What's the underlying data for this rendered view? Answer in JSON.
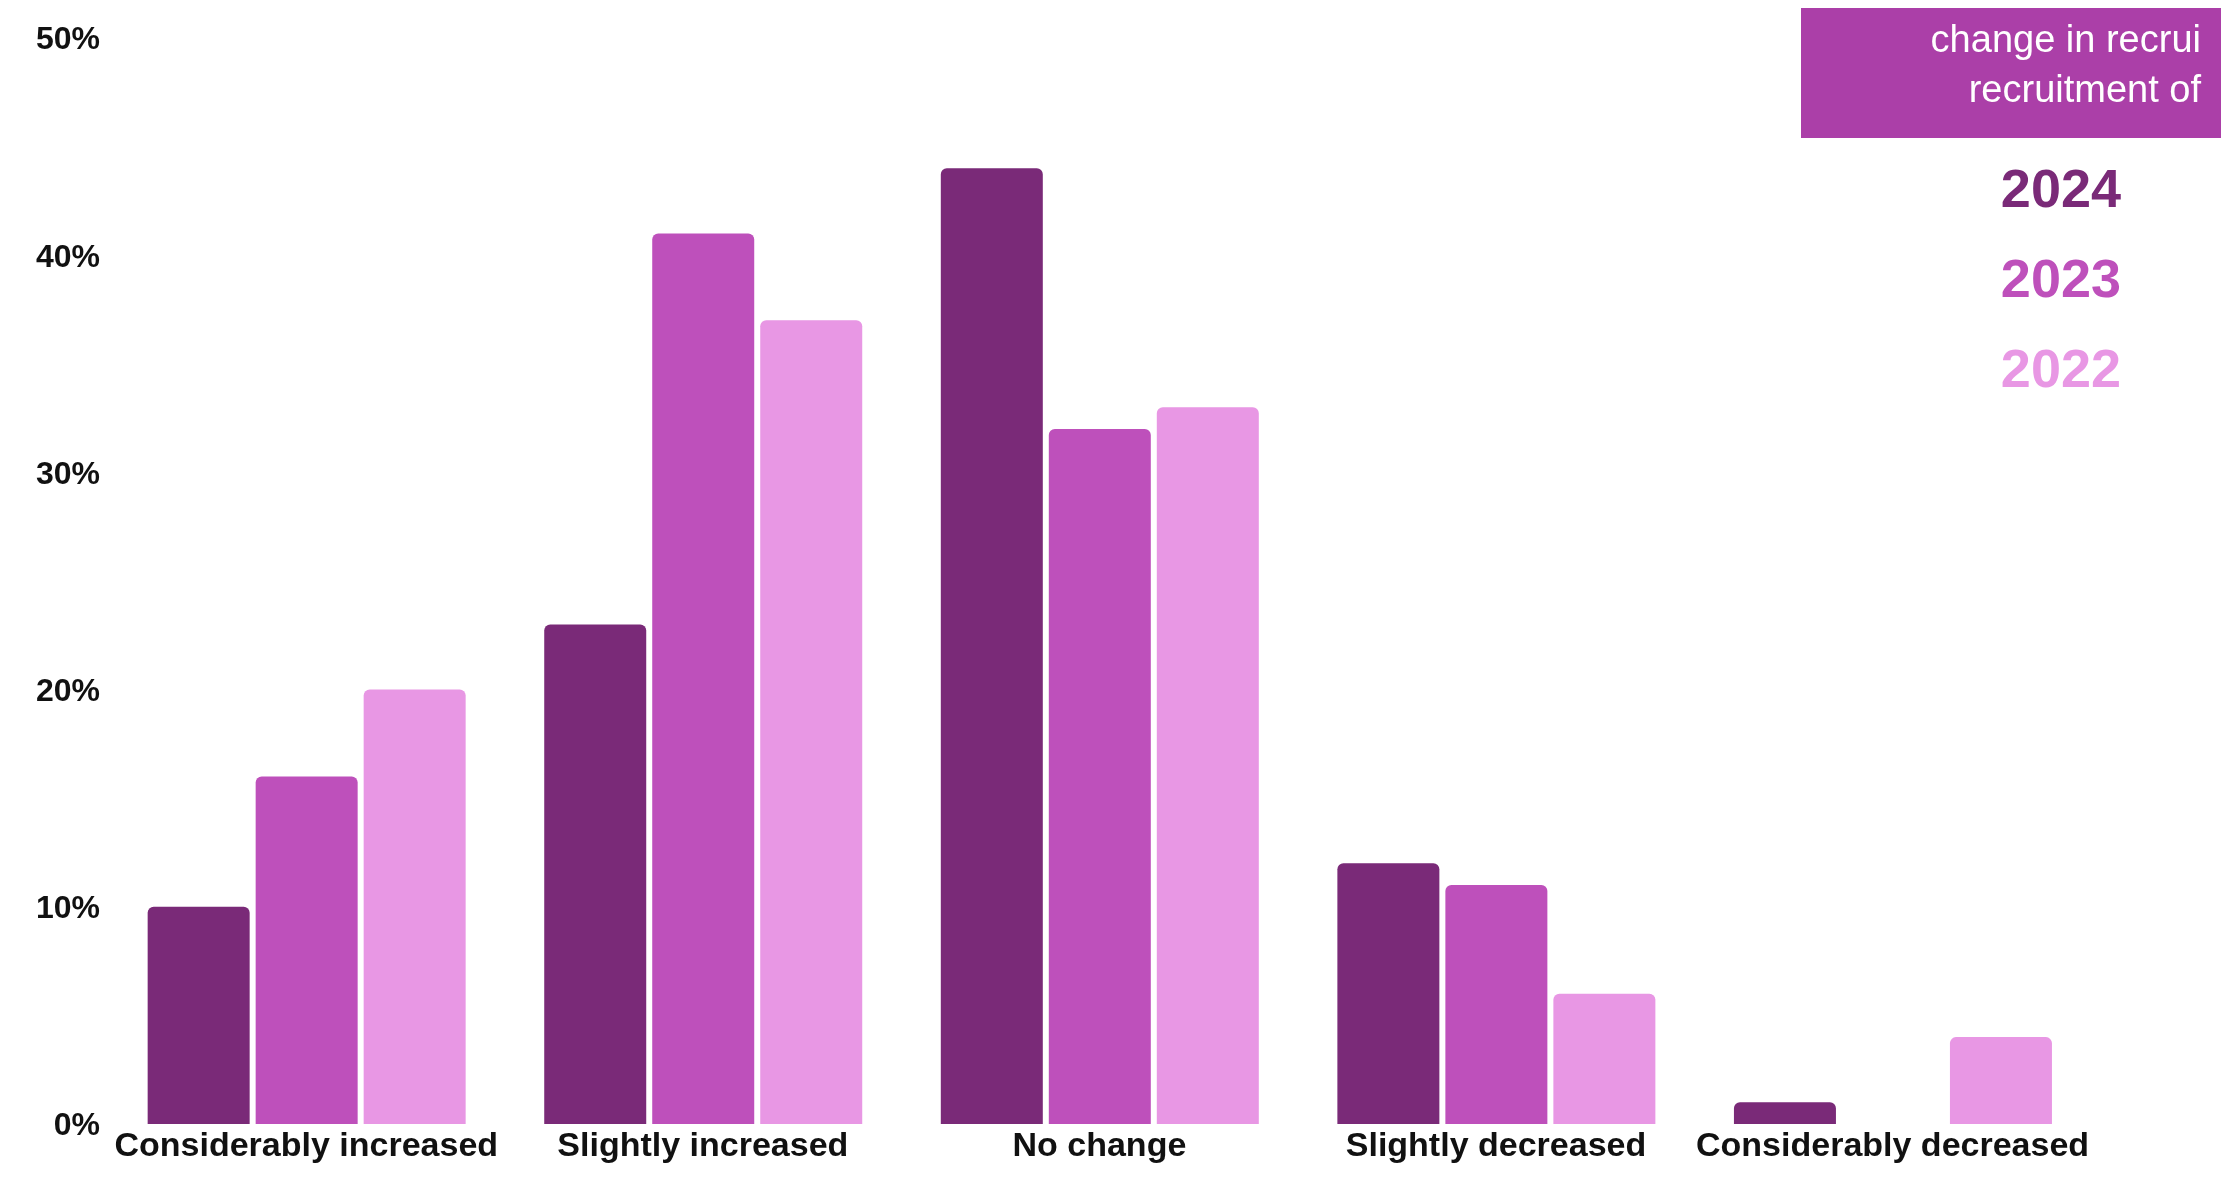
{
  "chart_data": {
    "type": "bar",
    "title": "change in recrui\nrecruitment of",
    "categories": [
      "Considerably increased",
      "Slightly increased",
      "No change",
      "Slightly decreased",
      "Considerably decreased"
    ],
    "series": [
      {
        "name": "2024",
        "color": "#7a2a78",
        "values": [
          10,
          23,
          44,
          12,
          1
        ]
      },
      {
        "name": "2023",
        "color": "#be50bb",
        "values": [
          16,
          41,
          32,
          11,
          0
        ]
      },
      {
        "name": "2022",
        "color": "#e897e4",
        "values": [
          20,
          37,
          33,
          6,
          4
        ]
      }
    ],
    "ylim": [
      0,
      50
    ],
    "yticks": [
      {
        "value": 0,
        "label": "0%"
      },
      {
        "value": 10,
        "label": "10%"
      },
      {
        "value": 20,
        "label": "20%"
      },
      {
        "value": 30,
        "label": "30%"
      },
      {
        "value": 40,
        "label": "40%"
      },
      {
        "value": 50,
        "label": "50%"
      }
    ],
    "grid": false,
    "legend": "top right"
  }
}
